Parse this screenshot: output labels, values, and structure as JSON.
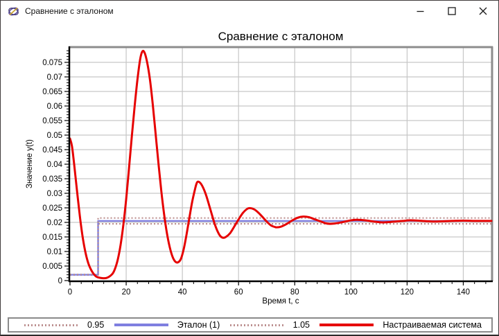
{
  "window": {
    "title": "Сравнение с эталоном"
  },
  "chart_data": {
    "type": "line",
    "title": "Сравнение с эталоном",
    "xlabel": "Время t, с",
    "ylabel": "Значение y(t)",
    "xlim": [
      0,
      150
    ],
    "ylim": [
      0,
      0.08
    ],
    "grid": true,
    "legend_position": "bottom",
    "xticks": [
      0,
      20,
      40,
      60,
      80,
      100,
      120,
      140
    ],
    "xtick_labels": [
      "0",
      "20",
      "40",
      "60",
      "80",
      "100",
      "120",
      "140"
    ],
    "x_minor_step": 4,
    "yticks": [
      0,
      0.005,
      0.01,
      0.015,
      0.02,
      0.025,
      0.03,
      0.035,
      0.04,
      0.045,
      0.05,
      0.055,
      0.06,
      0.065,
      0.07,
      0.075
    ],
    "ytick_labels": [
      "0",
      "0.005",
      "0.01",
      "0.015",
      "0.02",
      "0.025",
      "0.03",
      "0.035",
      "0.04",
      "0.045",
      "0.05",
      "0.055",
      "0.06",
      "0.065",
      "0.07",
      "0.075"
    ],
    "y_minor_step": 0.001,
    "series": [
      {
        "name": "0.95",
        "color": "#bc8f8f",
        "style": "dotted",
        "width": 2.2,
        "points": [
          [
            0,
            0.0019
          ],
          [
            10,
            0.0019
          ],
          [
            10,
            0.0195
          ],
          [
            150,
            0.0195
          ]
        ]
      },
      {
        "name": "Эталон (1)",
        "color": "#7f7fe0",
        "style": "solid",
        "width": 2.4,
        "points": [
          [
            0,
            0.002
          ],
          [
            10,
            0.002
          ],
          [
            10,
            0.0205
          ],
          [
            150,
            0.0205
          ]
        ]
      },
      {
        "name": "1.05",
        "color": "#bc8f8f",
        "style": "dotted",
        "width": 2.2,
        "points": [
          [
            0,
            0.0021
          ],
          [
            10,
            0.0021
          ],
          [
            10,
            0.0215
          ],
          [
            150,
            0.0215
          ]
        ]
      },
      {
        "name": "Настраиваемая система",
        "color": "#e60000",
        "style": "solid",
        "width": 3,
        "smooth": true,
        "points": [
          [
            0,
            0.0488
          ],
          [
            0.7,
            0.0462
          ],
          [
            1.5,
            0.0398
          ],
          [
            2.5,
            0.0308
          ],
          [
            3.5,
            0.0222
          ],
          [
            4.5,
            0.015
          ],
          [
            5.5,
            0.0097
          ],
          [
            6.5,
            0.006
          ],
          [
            7.5,
            0.0037
          ],
          [
            8.5,
            0.0022
          ],
          [
            9.5,
            0.0013
          ],
          [
            11,
            0.0009
          ],
          [
            13,
            0.0009
          ],
          [
            15,
            0.0022
          ],
          [
            16,
            0.004
          ],
          [
            17,
            0.0072
          ],
          [
            18,
            0.0122
          ],
          [
            19,
            0.0192
          ],
          [
            20,
            0.028
          ],
          [
            21,
            0.0385
          ],
          [
            22,
            0.0495
          ],
          [
            23,
            0.0598
          ],
          [
            24,
            0.069
          ],
          [
            25,
            0.0762
          ],
          [
            25.8,
            0.0788
          ],
          [
            26.6,
            0.0782
          ],
          [
            27.5,
            0.0748
          ],
          [
            28.5,
            0.0688
          ],
          [
            29.5,
            0.0602
          ],
          [
            30.5,
            0.0502
          ],
          [
            31.5,
            0.0402
          ],
          [
            32.5,
            0.0308
          ],
          [
            33.5,
            0.0228
          ],
          [
            34.5,
            0.0163
          ],
          [
            35.5,
            0.0115
          ],
          [
            36.5,
            0.0082
          ],
          [
            37.5,
            0.0065
          ],
          [
            38.5,
            0.0063
          ],
          [
            39.5,
            0.0075
          ],
          [
            40.5,
            0.0109
          ],
          [
            41.5,
            0.0159
          ],
          [
            42.5,
            0.0216
          ],
          [
            43.5,
            0.0271
          ],
          [
            44.5,
            0.0314
          ],
          [
            45,
            0.0332
          ],
          [
            45.5,
            0.034
          ],
          [
            46.5,
            0.0334
          ],
          [
            47.5,
            0.0317
          ],
          [
            48.5,
            0.0292
          ],
          [
            49.5,
            0.026
          ],
          [
            50.5,
            0.0227
          ],
          [
            51.5,
            0.0195
          ],
          [
            52.5,
            0.017
          ],
          [
            53.5,
            0.0153
          ],
          [
            54.5,
            0.0147
          ],
          [
            55.5,
            0.015
          ],
          [
            57,
            0.0163
          ],
          [
            58.5,
            0.0186
          ],
          [
            60,
            0.021
          ],
          [
            61.5,
            0.0232
          ],
          [
            63,
            0.0246
          ],
          [
            64,
            0.0249
          ],
          [
            65.5,
            0.0245
          ],
          [
            67,
            0.0234
          ],
          [
            68.5,
            0.0219
          ],
          [
            70,
            0.0203
          ],
          [
            71.5,
            0.019
          ],
          [
            73,
            0.0184
          ],
          [
            73.5,
            0.0183
          ],
          [
            75,
            0.0185
          ],
          [
            77,
            0.0194
          ],
          [
            79,
            0.0206
          ],
          [
            81,
            0.0216
          ],
          [
            83,
            0.022
          ],
          [
            85,
            0.0218
          ],
          [
            87,
            0.0211
          ],
          [
            89,
            0.0204
          ],
          [
            91,
            0.0197
          ],
          [
            92.5,
            0.0195
          ],
          [
            94,
            0.0196
          ],
          [
            96,
            0.0199
          ],
          [
            98,
            0.0203
          ],
          [
            100,
            0.0207
          ],
          [
            102,
            0.0209
          ],
          [
            104,
            0.0208
          ],
          [
            106,
            0.0206
          ],
          [
            108,
            0.0203
          ],
          [
            110,
            0.0201
          ],
          [
            111.5,
            0.02
          ],
          [
            113.5,
            0.0201
          ],
          [
            116,
            0.0203
          ],
          [
            118.5,
            0.0205
          ],
          [
            121,
            0.0207
          ],
          [
            124,
            0.0206
          ],
          [
            127,
            0.0204
          ],
          [
            130.5,
            0.0203
          ],
          [
            133,
            0.0204
          ],
          [
            136,
            0.0205
          ],
          [
            140,
            0.0206
          ],
          [
            145,
            0.0205
          ],
          [
            150,
            0.0205
          ]
        ]
      }
    ]
  },
  "colors": {
    "grid": "#c6c6c6",
    "axis": "#000000",
    "frame": "#8c8c8c",
    "reference_blue": "#7f7fe0",
    "system_red": "#e60000",
    "band_rosy": "#bc8f8f"
  }
}
